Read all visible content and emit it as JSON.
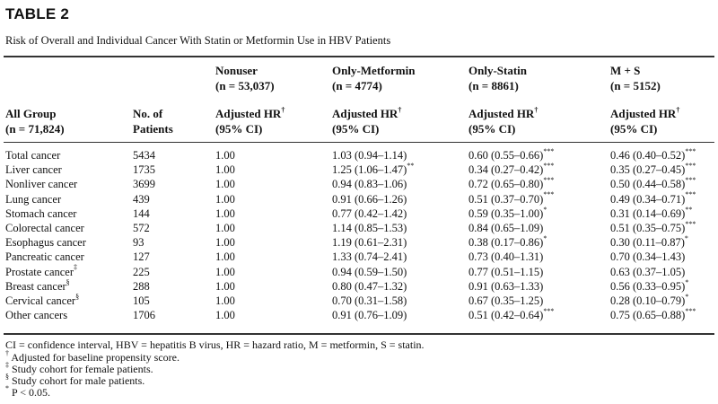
{
  "title": "TABLE 2",
  "caption": "Risk of Overall and Individual Cancer With Statin or Metformin Use in HBV Patients",
  "header": {
    "group_line1": "All Group",
    "group_line2": "(n = 71,824)",
    "patients_line1": "No. of",
    "patients_line2": "Patients",
    "groups": [
      {
        "name": "Nonuser",
        "n": "(n = 53,037)",
        "hr": "Adjusted HR",
        "ci": "(95% CI)",
        "mark": "†"
      },
      {
        "name": "Only-Metformin",
        "n": "(n = 4774)",
        "hr": "Adjusted HR",
        "ci": "(95% CI)",
        "mark": "†"
      },
      {
        "name": "Only-Statin",
        "n": "(n = 8861)",
        "hr": "Adjusted HR",
        "ci": "(95% CI)",
        "mark": "†"
      },
      {
        "name": "M + S",
        "n": "(n = 5152)",
        "hr": "Adjusted HR",
        "ci": "(95% CI)",
        "mark": "†"
      }
    ]
  },
  "rows": [
    {
      "label": "Total cancer",
      "label_mark": "",
      "patients": "5434",
      "non": "1.00",
      "met": "1.03 (0.94–1.14)",
      "met_sig": "",
      "sta": "0.60 (0.55–0.66)",
      "sta_sig": "***",
      "ms": "0.46 (0.40–0.52)",
      "ms_sig": "***"
    },
    {
      "label": "Liver cancer",
      "label_mark": "",
      "patients": "1735",
      "non": "1.00",
      "met": "1.25 (1.06–1.47)",
      "met_sig": "**",
      "sta": "0.34 (0.27–0.42)",
      "sta_sig": "***",
      "ms": "0.35 (0.27–0.45)",
      "ms_sig": "***"
    },
    {
      "label": "Nonliver cancer",
      "label_mark": "",
      "patients": "3699",
      "non": "1.00",
      "met": "0.94 (0.83–1.06)",
      "met_sig": "",
      "sta": "0.72 (0.65–0.80)",
      "sta_sig": "***",
      "ms": "0.50 (0.44–0.58)",
      "ms_sig": "***"
    },
    {
      "label": "Lung cancer",
      "label_mark": "",
      "patients": "439",
      "non": "1.00",
      "met": "0.91 (0.66–1.26)",
      "met_sig": "",
      "sta": "0.51 (0.37–0.70)",
      "sta_sig": "***",
      "ms": "0.49 (0.34–0.71)",
      "ms_sig": "***"
    },
    {
      "label": "Stomach cancer",
      "label_mark": "",
      "patients": "144",
      "non": "1.00",
      "met": "0.77 (0.42–1.42)",
      "met_sig": "",
      "sta": "0.59 (0.35–1.00)",
      "sta_sig": "*",
      "ms": "0.31 (0.14–0.69)",
      "ms_sig": "**"
    },
    {
      "label": "Colorectal cancer",
      "label_mark": "",
      "patients": "572",
      "non": "1.00",
      "met": "1.14 (0.85–1.53)",
      "met_sig": "",
      "sta": "0.84 (0.65–1.09)",
      "sta_sig": "",
      "ms": "0.51 (0.35–0.75)",
      "ms_sig": "***"
    },
    {
      "label": "Esophagus cancer",
      "label_mark": "",
      "patients": "93",
      "non": "1.00",
      "met": "1.19 (0.61–2.31)",
      "met_sig": "",
      "sta": "0.38 (0.17–0.86)",
      "sta_sig": "*",
      "ms": "0.30 (0.11–0.87)",
      "ms_sig": "*"
    },
    {
      "label": "Pancreatic cancer",
      "label_mark": "",
      "patients": "127",
      "non": "1.00",
      "met": "1.33 (0.74–2.41)",
      "met_sig": "",
      "sta": "0.73 (0.40–1.31)",
      "sta_sig": "",
      "ms": "0.70 (0.34–1.43)",
      "ms_sig": ""
    },
    {
      "label": "Prostate cancer",
      "label_mark": "‡",
      "patients": "225",
      "non": "1.00",
      "met": "0.94 (0.59–1.50)",
      "met_sig": "",
      "sta": "0.77 (0.51–1.15)",
      "sta_sig": "",
      "ms": "0.63 (0.37–1.05)",
      "ms_sig": ""
    },
    {
      "label": "Breast cancer",
      "label_mark": "§",
      "patients": "288",
      "non": "1.00",
      "met": "0.80 (0.47–1.32)",
      "met_sig": "",
      "sta": "0.91 (0.63–1.33)",
      "sta_sig": "",
      "ms": "0.56 (0.33–0.95)",
      "ms_sig": "*"
    },
    {
      "label": "Cervical cancer",
      "label_mark": "§",
      "patients": "105",
      "non": "1.00",
      "met": "0.70 (0.31–1.58)",
      "met_sig": "",
      "sta": "0.67 (0.35–1.25)",
      "sta_sig": "",
      "ms": "0.28 (0.10–0.79)",
      "ms_sig": "*"
    },
    {
      "label": "Other cancers",
      "label_mark": "",
      "patients": "1706",
      "non": "1.00",
      "met": "0.91 (0.76–1.09)",
      "met_sig": "",
      "sta": "0.51 (0.42–0.64)",
      "sta_sig": "***",
      "ms": "0.75 (0.65–0.88)",
      "ms_sig": "***"
    }
  ],
  "footnotes": [
    {
      "mark": "",
      "text": "CI = confidence interval, HBV = hepatitis B virus, HR = hazard ratio, M = metformin, S = statin."
    },
    {
      "mark": "†",
      "text": "Adjusted for baseline propensity score."
    },
    {
      "mark": "‡",
      "text": "Study cohort for female patients."
    },
    {
      "mark": "§",
      "text": "Study cohort for male patients."
    },
    {
      "mark": "*",
      "text": "P < 0.05."
    }
  ]
}
